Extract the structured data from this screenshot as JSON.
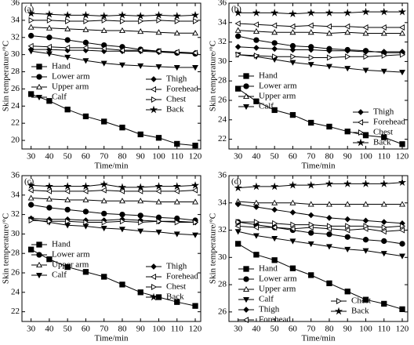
{
  "chart_data": [
    {
      "type": "line",
      "title": "(a)",
      "xlabel": "Time/min",
      "ylabel": "Skin temperature/°C",
      "x": [
        30,
        40,
        50,
        60,
        70,
        80,
        90,
        100,
        110,
        120
      ],
      "xlim": [
        25,
        123
      ],
      "xticks": [
        30,
        40,
        50,
        60,
        70,
        80,
        90,
        100,
        110,
        120
      ],
      "ylim": [
        19,
        36
      ],
      "yticks": [
        20,
        22,
        24,
        26,
        28,
        30,
        32,
        34,
        36
      ],
      "series": [
        {
          "name": "Hand",
          "color": "#000000",
          "marker": "square",
          "values": [
            25.4,
            24.6,
            23.6,
            22.8,
            22.2,
            21.5,
            20.7,
            20.3,
            19.6,
            19.4
          ]
        },
        {
          "name": "Lower arm",
          "color": "#000000",
          "marker": "circle",
          "values": [
            32.2,
            32.0,
            31.7,
            31.4,
            31.1,
            30.9,
            30.6,
            30.4,
            30.2,
            30.1
          ]
        },
        {
          "name": "Upper arm",
          "color": "#000000",
          "marker": "triangle-up-open",
          "values": [
            33.2,
            33.1,
            33.0,
            32.9,
            32.8,
            32.8,
            32.7,
            32.6,
            32.5,
            32.5
          ]
        },
        {
          "name": "Calf",
          "color": "#000000",
          "marker": "triangle-down",
          "values": [
            30.4,
            30.1,
            29.7,
            29.3,
            29.0,
            28.8,
            28.7,
            28.6,
            28.5,
            28.5
          ]
        },
        {
          "name": "Thigh",
          "color": "#000000",
          "marker": "diamond",
          "values": [
            30.6,
            30.6,
            30.5,
            30.5,
            30.4,
            30.4,
            30.4,
            30.3,
            30.2,
            30.2
          ]
        },
        {
          "name": "Forehead",
          "color": "#000000",
          "marker": "triangle-left-open",
          "values": [
            31.0,
            30.9,
            30.8,
            30.8,
            30.7,
            30.5,
            30.5,
            30.4,
            30.3,
            30.2
          ]
        },
        {
          "name": "Chest",
          "color": "#000000",
          "marker": "triangle-right-open",
          "values": [
            34.0,
            34.0,
            33.9,
            33.9,
            34.0,
            33.9,
            33.9,
            34.0,
            33.9,
            33.9
          ]
        },
        {
          "name": "Back",
          "color": "#000000",
          "marker": "star",
          "values": [
            34.8,
            34.7,
            34.6,
            34.6,
            34.5,
            34.6,
            34.5,
            34.6,
            34.5,
            34.6
          ]
        }
      ]
    },
    {
      "type": "line",
      "title": "(b)",
      "xlabel": "Time/min",
      "ylabel": "Skin temperature/°C",
      "x": [
        30,
        40,
        50,
        60,
        70,
        80,
        90,
        100,
        110,
        120
      ],
      "xlim": [
        25,
        123
      ],
      "xticks": [
        30,
        40,
        50,
        60,
        70,
        80,
        90,
        100,
        110,
        120
      ],
      "ylim": [
        21,
        36
      ],
      "yticks": [
        22,
        24,
        26,
        28,
        30,
        32,
        34,
        36
      ],
      "series": [
        {
          "name": "Hand",
          "color": "#000000",
          "marker": "square",
          "values": [
            27.2,
            25.9,
            25.0,
            24.5,
            23.7,
            23.3,
            22.8,
            22.4,
            22.2,
            21.5
          ]
        },
        {
          "name": "Lower arm",
          "color": "#000000",
          "marker": "circle",
          "values": [
            32.6,
            32.2,
            31.9,
            31.6,
            31.5,
            31.3,
            31.2,
            31.1,
            30.9,
            30.9
          ]
        },
        {
          "name": "Upper arm",
          "color": "#000000",
          "marker": "triangle-up-open",
          "values": [
            33.2,
            33.1,
            33.0,
            33.0,
            33.0,
            32.9,
            33.0,
            32.9,
            32.9,
            32.9
          ]
        },
        {
          "name": "Calf",
          "color": "#000000",
          "marker": "triangle-down",
          "values": [
            30.7,
            30.5,
            30.2,
            29.9,
            29.7,
            29.5,
            29.3,
            29.1,
            29.0,
            28.9
          ]
        },
        {
          "name": "Thigh",
          "color": "#000000",
          "marker": "diamond",
          "values": [
            31.5,
            31.4,
            31.3,
            31.2,
            31.2,
            31.1,
            31.1,
            31.0,
            31.0,
            31.0
          ]
        },
        {
          "name": "Forehead",
          "color": "#000000",
          "marker": "triangle-left-open",
          "values": [
            33.9,
            33.8,
            33.7,
            33.6,
            33.7,
            33.6,
            33.6,
            33.5,
            33.5,
            33.5
          ]
        },
        {
          "name": "Chest",
          "color": "#000000",
          "marker": "triangle-right-open",
          "values": [
            30.7,
            30.6,
            30.5,
            30.5,
            30.4,
            30.4,
            30.5,
            30.5,
            30.6,
            30.7
          ]
        },
        {
          "name": "Back",
          "color": "#000000",
          "marker": "star",
          "values": [
            35.0,
            35.0,
            35.0,
            34.9,
            35.0,
            35.0,
            35.0,
            35.1,
            35.1,
            35.1
          ]
        }
      ]
    },
    {
      "type": "line",
      "title": "(c)",
      "xlabel": "Time/min",
      "ylabel": "Skin temperature/°C",
      "x": [
        30,
        40,
        50,
        60,
        70,
        80,
        90,
        100,
        110,
        120
      ],
      "xlim": [
        25,
        123
      ],
      "xticks": [
        30,
        40,
        50,
        60,
        70,
        80,
        90,
        100,
        110,
        120
      ],
      "ylim": [
        21,
        36
      ],
      "yticks": [
        22,
        24,
        26,
        28,
        30,
        32,
        34,
        36
      ],
      "series": [
        {
          "name": "Hand",
          "color": "#000000",
          "marker": "square",
          "values": [
            28.4,
            27.4,
            26.6,
            26.1,
            25.6,
            24.8,
            24.0,
            23.5,
            23.0,
            22.6
          ]
        },
        {
          "name": "Lower arm",
          "color": "#000000",
          "marker": "circle",
          "values": [
            33.0,
            32.7,
            32.5,
            32.3,
            32.1,
            32.0,
            31.9,
            31.7,
            31.6,
            31.4
          ]
        },
        {
          "name": "Upper arm",
          "color": "#000000",
          "marker": "triangle-up-open",
          "values": [
            33.7,
            33.6,
            33.5,
            33.5,
            33.4,
            33.4,
            33.4,
            33.3,
            33.3,
            33.3
          ]
        },
        {
          "name": "Calf",
          "color": "#000000",
          "marker": "triangle-down",
          "values": [
            31.5,
            31.2,
            30.9,
            30.8,
            30.6,
            30.5,
            30.3,
            30.2,
            30.0,
            29.9
          ]
        },
        {
          "name": "Thigh",
          "color": "#000000",
          "marker": "diamond",
          "values": [
            31.6,
            31.5,
            31.5,
            31.4,
            31.4,
            31.5,
            31.4,
            31.3,
            31.3,
            31.2
          ]
        },
        {
          "name": "Forehead",
          "color": "#000000",
          "marker": "triangle-left-open",
          "values": [
            34.5,
            34.4,
            34.4,
            34.4,
            34.5,
            34.4,
            34.4,
            34.4,
            34.4,
            34.5
          ]
        },
        {
          "name": "Chest",
          "color": "#000000",
          "marker": "triangle-right-open",
          "values": [
            31.4,
            31.3,
            31.3,
            31.2,
            31.2,
            31.3,
            31.2,
            31.3,
            31.2,
            31.2
          ]
        },
        {
          "name": "Back",
          "color": "#000000",
          "marker": "star",
          "values": [
            35.0,
            34.9,
            34.9,
            34.9,
            35.1,
            34.8,
            34.8,
            34.9,
            34.9,
            35.0
          ]
        }
      ]
    },
    {
      "type": "line",
      "title": "(d)",
      "xlabel": "Time/min",
      "ylabel": "Skin temperature/°C",
      "x": [
        30,
        40,
        50,
        60,
        70,
        80,
        90,
        100,
        110,
        120
      ],
      "xlim": [
        25,
        123
      ],
      "xticks": [
        30,
        40,
        50,
        60,
        70,
        80,
        90,
        100,
        110,
        120
      ],
      "ylim": [
        25.3,
        36
      ],
      "yticks": [
        26,
        28,
        30,
        32,
        34,
        36
      ],
      "series": [
        {
          "name": "Hand",
          "color": "#000000",
          "marker": "square",
          "values": [
            31.0,
            30.2,
            29.8,
            29.2,
            28.7,
            28.1,
            27.5,
            26.9,
            26.6,
            26.2
          ]
        },
        {
          "name": "Lower arm",
          "color": "#000000",
          "marker": "circle",
          "values": [
            32.6,
            32.4,
            32.2,
            32.0,
            31.8,
            31.7,
            31.5,
            31.3,
            31.2,
            31.0
          ]
        },
        {
          "name": "Upper arm",
          "color": "#000000",
          "marker": "triangle-up-open",
          "values": [
            34.1,
            34.0,
            34.0,
            34.0,
            33.9,
            33.9,
            33.9,
            33.9,
            33.9,
            33.9
          ]
        },
        {
          "name": "Calf",
          "color": "#000000",
          "marker": "triangle-down",
          "values": [
            31.9,
            31.6,
            31.4,
            31.2,
            31.0,
            30.8,
            30.6,
            30.5,
            30.3,
            30.1
          ]
        },
        {
          "name": "Thigh",
          "color": "#000000",
          "marker": "diamond",
          "values": [
            33.9,
            33.7,
            33.5,
            33.3,
            33.1,
            32.9,
            32.8,
            32.7,
            32.6,
            32.5
          ]
        },
        {
          "name": "Forehead",
          "color": "#000000",
          "marker": "triangle-left-open",
          "values": [
            32.3,
            32.2,
            32.2,
            32.1,
            32.2,
            32.1,
            32.0,
            32.1,
            31.9,
            32.0
          ]
        },
        {
          "name": "Chest",
          "color": "#000000",
          "marker": "triangle-right-open",
          "values": [
            32.6,
            32.6,
            32.5,
            32.4,
            32.4,
            32.3,
            32.3,
            32.3,
            32.2,
            32.3
          ]
        },
        {
          "name": "Back",
          "color": "#000000",
          "marker": "star",
          "values": [
            35.1,
            35.2,
            35.2,
            35.3,
            35.3,
            35.4,
            35.4,
            35.4,
            35.4,
            35.5
          ]
        }
      ]
    }
  ]
}
